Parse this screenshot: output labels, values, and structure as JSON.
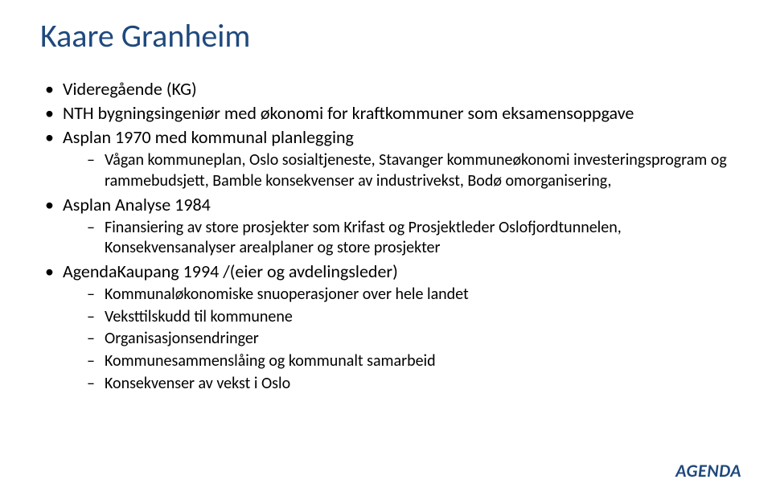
{
  "title": "Kaare Granheim",
  "title_color": "#1f497d",
  "title_fontsize": 40,
  "body_fontsize_l1": 22,
  "body_fontsize_l2": 20,
  "text_color": "#000000",
  "background_color": "#ffffff",
  "bullets": [
    {
      "text": "Videregående (KG)",
      "children": []
    },
    {
      "text": "NTH bygningsingeniør med økonomi for kraftkommuner som eksamensoppgave",
      "children": []
    },
    {
      "text": "Asplan 1970 med kommunal planlegging",
      "children": [
        {
          "text": "Vågan kommuneplan, Oslo sosialtjeneste, Stavanger kommuneøkonomi investeringsprogram og rammebudsjett, Bamble konsekvenser av industrivekst, Bodø omorganisering,"
        }
      ]
    },
    {
      "text": "Asplan Analyse 1984",
      "children": [
        {
          "text": "Finansiering av store prosjekter som Krifast og Prosjektleder Oslofjordtunnelen, Konsekvensanalyser arealplaner og store prosjekter"
        }
      ]
    },
    {
      "text": "AgendaKaupang 1994 /(eier og avdelingsleder)",
      "children": [
        {
          "text": "Kommunaløkonomiske snuoperasjoner over hele landet"
        },
        {
          "text": "Veksttilskudd til kommunene"
        },
        {
          "text": "Organisasjonsendringer"
        },
        {
          "text": "Kommunesammenslåing og kommunalt samarbeid"
        },
        {
          "text": "Konsekvenser av vekst i Oslo"
        }
      ]
    }
  ],
  "logo_text": "AGENDA",
  "logo_color": "#1f497d",
  "logo_fontsize": 22
}
